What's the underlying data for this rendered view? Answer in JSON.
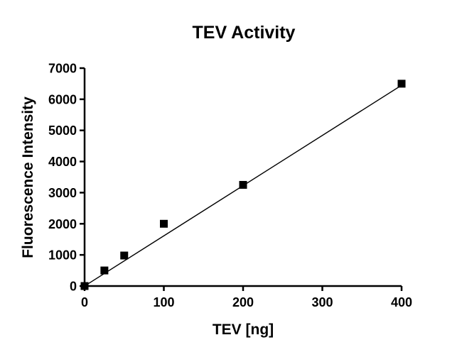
{
  "chart_data": {
    "type": "scatter",
    "title": "TEV Activity",
    "xlabel": "TEV [ng]",
    "ylabel": "Fluorescence Intensity",
    "xlim": [
      0,
      400
    ],
    "ylim": [
      0,
      7000
    ],
    "xticks": [
      0,
      100,
      200,
      300,
      400
    ],
    "yticks": [
      0,
      1000,
      2000,
      3000,
      4000,
      5000,
      6000,
      7000
    ],
    "xtick_labels": [
      "0",
      "100",
      "200",
      "300",
      "400"
    ],
    "ytick_labels": [
      "0",
      "1000",
      "2000",
      "3000",
      "4000",
      "5000",
      "6000",
      "7000"
    ],
    "series": [
      {
        "name": "TEV Activity",
        "marker": "square",
        "color": "#000000",
        "x": [
          0,
          25,
          50,
          100,
          200,
          400
        ],
        "y": [
          0,
          500,
          980,
          2000,
          3250,
          6500
        ]
      }
    ],
    "fit_line": {
      "type": "linear",
      "color": "#000000",
      "x": [
        0,
        400
      ],
      "y": [
        0,
        6450
      ]
    },
    "grid": false
  }
}
